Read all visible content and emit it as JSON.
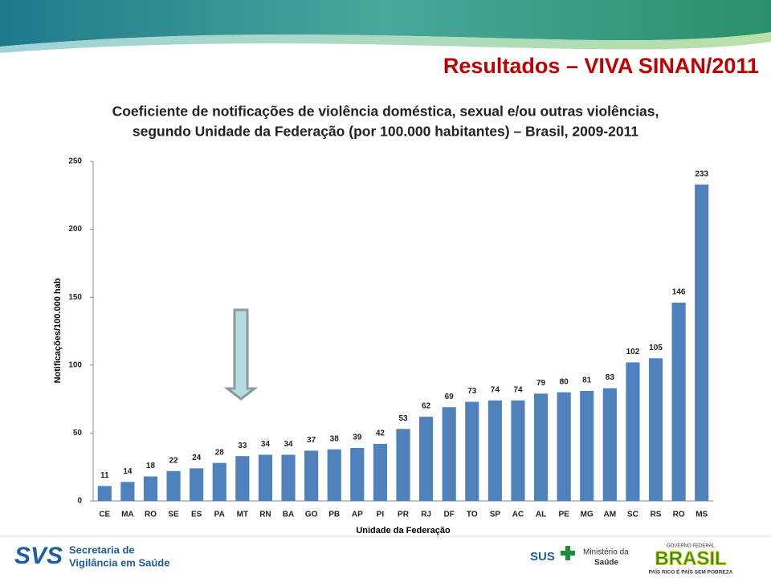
{
  "header": {
    "title": "Resultados  – VIVA SINAN/2011"
  },
  "chart_data": {
    "type": "bar",
    "title": [
      "Coeficiente de notificações de violência doméstica, sexual e/ou outras violências,",
      "segundo Unidade da Federação (por 100.000 habitantes) – Brasil, 2009-2011"
    ],
    "x_label": "Unidade da Federação",
    "y_label": "Notificações/100.000 hab",
    "categories": [
      "CE",
      "MA",
      "RO",
      "SE",
      "ES",
      "PA",
      "MT",
      "RN",
      "BA",
      "GO",
      "PB",
      "AP",
      "PI",
      "PR",
      "RJ",
      "DF",
      "TO",
      "SP",
      "AC",
      "AL",
      "PE",
      "MG",
      "AM",
      "SC",
      "RS",
      "RO",
      "MS"
    ],
    "values": [
      11,
      14,
      18,
      22,
      24,
      28,
      33,
      34,
      34,
      37,
      38,
      39,
      42,
      53,
      62,
      69,
      73,
      74,
      74,
      79,
      80,
      81,
      83,
      102,
      105,
      146,
      233
    ],
    "color": "#4f81bd",
    "ylim": [
      0,
      250
    ],
    "yticks": [
      0,
      50,
      100,
      150,
      200,
      250
    ],
    "grid": false
  },
  "footer": {
    "svs_logo": "SVS",
    "svs_name_1": "Secretaria de",
    "svs_name_2": "Vigilância em Saúde",
    "sus": "SUS",
    "ministry_1": "Ministério da",
    "ministry_2": "Saúde",
    "gov": "GOVERNO FEDERAL",
    "brasil": "BRASIL",
    "slogan": "PAÍS RICO É PAÍS SEM POBREZA"
  }
}
